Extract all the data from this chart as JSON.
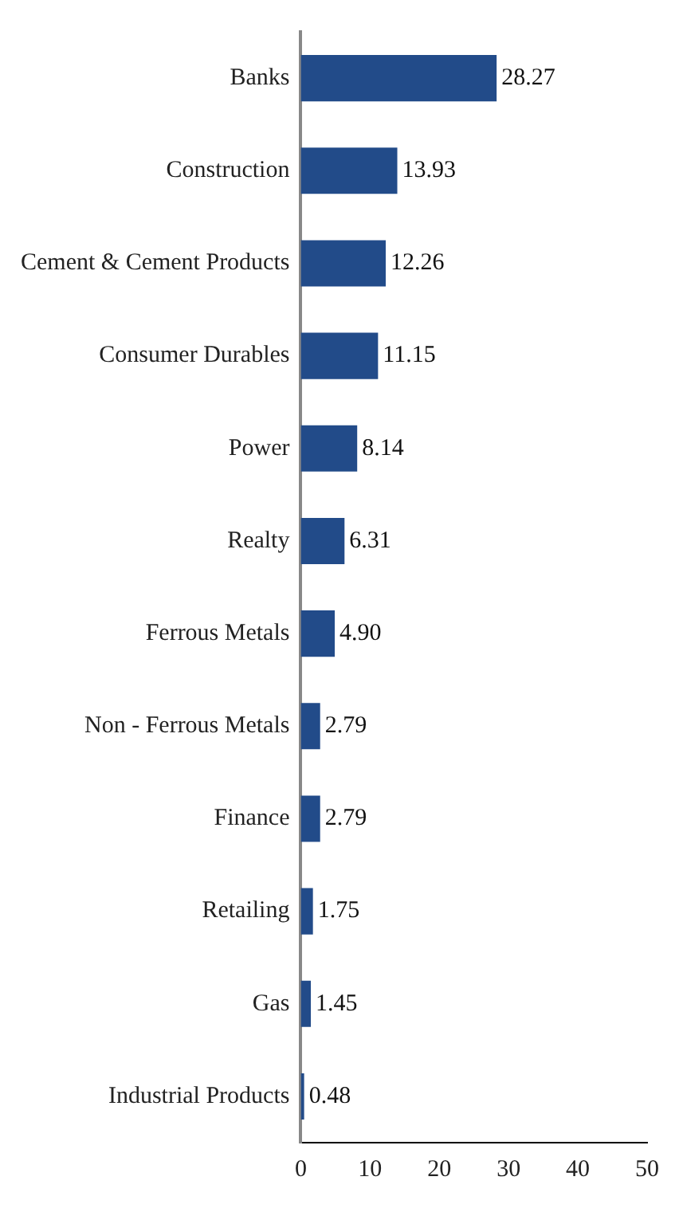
{
  "chart_data": {
    "type": "bar",
    "orientation": "horizontal",
    "categories": [
      "Banks",
      "Construction",
      "Cement & Cement Products",
      "Consumer Durables",
      "Power",
      "Realty",
      "Ferrous Metals",
      "Non - Ferrous Metals",
      "Finance",
      "Retailing",
      "Gas",
      "Industrial Products"
    ],
    "values": [
      28.27,
      13.93,
      12.26,
      11.15,
      8.14,
      6.31,
      4.9,
      2.79,
      2.79,
      1.75,
      1.45,
      0.48
    ],
    "value_labels": [
      "28.27",
      "13.93",
      "12.26",
      "11.15",
      "8.14",
      "6.31",
      "4.90",
      "2.79",
      "2.79",
      "1.75",
      "1.45",
      "0.48"
    ],
    "color": "#224b89",
    "xlim": [
      0,
      50
    ],
    "xticks": [
      0,
      10,
      20,
      30,
      40,
      50
    ],
    "grid": false,
    "legend": false
  }
}
